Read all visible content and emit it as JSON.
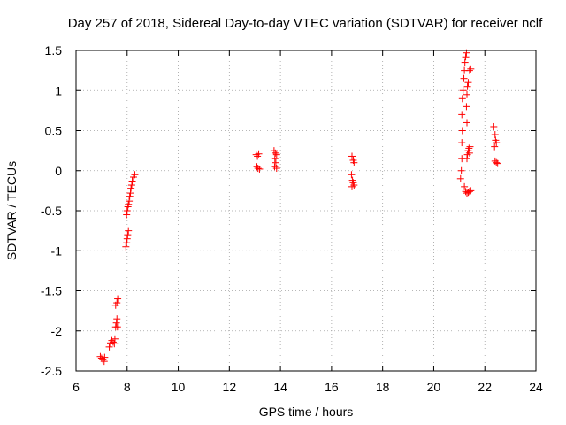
{
  "chart_data": {
    "type": "scatter",
    "title": "Day 257 of 2018, Sidereal Day-to-day VTEC variation (SDTVAR) for receiver nclf",
    "xlabel": "GPS time / hours",
    "ylabel": "SDTVAR / TECUs",
    "xlim": [
      6,
      24
    ],
    "ylim": [
      -2.5,
      1.5
    ],
    "xticks": [
      6,
      8,
      10,
      12,
      14,
      16,
      18,
      20,
      22,
      24
    ],
    "xtick_labels": [
      "6",
      "8",
      "10",
      "12",
      "14",
      "16",
      "18",
      "20",
      "22",
      "24"
    ],
    "yticks": [
      -2.5,
      -2,
      -1.5,
      -1,
      -0.5,
      0,
      0.5,
      1,
      1.5
    ],
    "ytick_labels": [
      "-2.5",
      "-2",
      "-1.5",
      "-1",
      "-0.5",
      "0",
      "0.5",
      "1",
      "1.5"
    ],
    "grid": true,
    "marker": "plus",
    "color": "#ff0000",
    "series": [
      {
        "name": "SDTVAR",
        "points": [
          [
            6.95,
            -2.32
          ],
          [
            7.0,
            -2.34
          ],
          [
            7.05,
            -2.36
          ],
          [
            7.1,
            -2.38
          ],
          [
            7.12,
            -2.33
          ],
          [
            7.3,
            -2.2
          ],
          [
            7.35,
            -2.15
          ],
          [
            7.4,
            -2.12
          ],
          [
            7.45,
            -2.14
          ],
          [
            7.5,
            -2.16
          ],
          [
            7.52,
            -2.1
          ],
          [
            7.55,
            -1.95
          ],
          [
            7.58,
            -1.9
          ],
          [
            7.6,
            -1.85
          ],
          [
            7.62,
            -1.95
          ],
          [
            7.55,
            -1.68
          ],
          [
            7.6,
            -1.65
          ],
          [
            7.63,
            -1.6
          ],
          [
            7.95,
            -0.95
          ],
          [
            7.98,
            -0.9
          ],
          [
            8.0,
            -0.85
          ],
          [
            8.02,
            -0.8
          ],
          [
            8.05,
            -0.75
          ],
          [
            7.98,
            -0.55
          ],
          [
            8.0,
            -0.5
          ],
          [
            8.03,
            -0.45
          ],
          [
            8.05,
            -0.42
          ],
          [
            8.08,
            -0.38
          ],
          [
            8.1,
            -0.32
          ],
          [
            8.13,
            -0.28
          ],
          [
            8.15,
            -0.22
          ],
          [
            8.18,
            -0.18
          ],
          [
            8.2,
            -0.13
          ],
          [
            8.25,
            -0.08
          ],
          [
            8.3,
            -0.05
          ],
          [
            13.05,
            0.2
          ],
          [
            13.1,
            0.18
          ],
          [
            13.15,
            0.21
          ],
          [
            13.08,
            0.05
          ],
          [
            13.12,
            0.03
          ],
          [
            13.18,
            0.02
          ],
          [
            13.75,
            0.25
          ],
          [
            13.8,
            0.22
          ],
          [
            13.85,
            0.2
          ],
          [
            13.78,
            0.15
          ],
          [
            13.82,
            0.1
          ],
          [
            13.77,
            0.05
          ],
          [
            13.85,
            0.03
          ],
          [
            16.8,
            0.18
          ],
          [
            16.85,
            0.13
          ],
          [
            16.88,
            0.1
          ],
          [
            16.78,
            -0.05
          ],
          [
            16.82,
            -0.12
          ],
          [
            16.85,
            -0.15
          ],
          [
            16.8,
            -0.2
          ],
          [
            16.88,
            -0.18
          ],
          [
            21.05,
            -0.1
          ],
          [
            21.08,
            0.0
          ],
          [
            21.1,
            0.15
          ],
          [
            21.1,
            0.35
          ],
          [
            21.12,
            0.5
          ],
          [
            21.1,
            0.7
          ],
          [
            21.12,
            0.9
          ],
          [
            21.15,
            1.0
          ],
          [
            21.18,
            1.15
          ],
          [
            21.2,
            1.25
          ],
          [
            21.22,
            1.35
          ],
          [
            21.25,
            1.42
          ],
          [
            21.28,
            1.47
          ],
          [
            21.2,
            -0.2
          ],
          [
            21.25,
            -0.26
          ],
          [
            21.3,
            -0.28
          ],
          [
            21.35,
            -0.27
          ],
          [
            21.4,
            -0.26
          ],
          [
            21.45,
            -0.25
          ],
          [
            21.3,
            0.15
          ],
          [
            21.32,
            0.2
          ],
          [
            21.35,
            0.25
          ],
          [
            21.38,
            0.28
          ],
          [
            21.4,
            0.22
          ],
          [
            21.42,
            0.3
          ],
          [
            21.3,
            0.6
          ],
          [
            21.28,
            0.8
          ],
          [
            21.3,
            0.95
          ],
          [
            21.32,
            1.05
          ],
          [
            21.35,
            1.1
          ],
          [
            21.4,
            1.25
          ],
          [
            21.45,
            1.27
          ],
          [
            22.35,
            0.55
          ],
          [
            22.4,
            0.45
          ],
          [
            22.42,
            0.38
          ],
          [
            22.45,
            0.35
          ],
          [
            22.38,
            0.3
          ],
          [
            22.4,
            0.12
          ],
          [
            22.45,
            0.1
          ],
          [
            22.5,
            0.09
          ]
        ]
      }
    ]
  }
}
